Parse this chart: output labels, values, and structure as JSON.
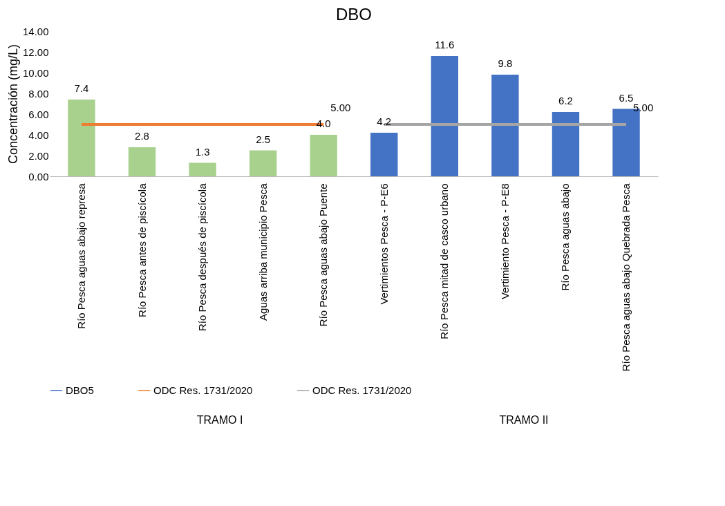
{
  "chart_data": {
    "type": "bar",
    "title": "DBO",
    "ylabel": "Concentración (mg/L)",
    "categories": [
      "Río Pesca aguas abajo represa",
      "Río Pesca antes de piscícola",
      "Río Pesca después de piscícola",
      "Aguas arriba municipio Pesca",
      "Río Pesca aguas abajo Puente",
      "Vertimientos Pesca - P-E6",
      "Río Pesca mitad de casco urbano",
      "Vertimiento Pesca - P-E8",
      "Río Pesca aguas abajo",
      "Río Pesca aguas abajo Quebrada Pesca"
    ],
    "series": [
      {
        "name": "DBO5",
        "color": "#4472c4",
        "colors": [
          "#a9d18e",
          "#a9d18e",
          "#a9d18e",
          "#a9d18e",
          "#a9d18e",
          "#4472c4",
          "#4472c4",
          "#4472c4",
          "#4472c4",
          "#4472c4"
        ],
        "values": [
          7.4,
          2.8,
          1.3,
          2.5,
          4.0,
          4.2,
          11.6,
          9.8,
          6.2,
          6.5
        ],
        "value_labels": [
          "7.4",
          "2.8",
          "1.3",
          "2.5",
          "4.0",
          "4.2",
          "11.6",
          "9.8",
          "6.2",
          "6.5"
        ]
      },
      {
        "name": "ODC Res. 1731/2020",
        "type": "line",
        "color": "#ed7d31",
        "values": [
          5,
          5,
          5,
          5,
          5,
          null,
          null,
          null,
          null,
          null
        ],
        "value_labels": [
          null,
          null,
          null,
          null,
          "5.00",
          null,
          null,
          null,
          null,
          null
        ]
      },
      {
        "name": "ODC Res. 1731/2020",
        "type": "line",
        "color": "#a5a5a5",
        "values": [
          null,
          null,
          null,
          null,
          null,
          5,
          5,
          5,
          5,
          5
        ],
        "value_labels": [
          null,
          null,
          null,
          null,
          null,
          null,
          null,
          null,
          null,
          "5.00"
        ]
      }
    ],
    "ylim": [
      0,
      14
    ],
    "yticks": [
      {
        "value": 0,
        "label": "0.00"
      },
      {
        "value": 2,
        "label": "2.00"
      },
      {
        "value": 4,
        "label": "4.00"
      },
      {
        "value": 6,
        "label": "6.00"
      },
      {
        "value": 8,
        "label": "8.00"
      },
      {
        "value": 10,
        "label": "10.00"
      },
      {
        "value": 12,
        "label": "12.00"
      },
      {
        "value": 14,
        "label": "14.00"
      }
    ],
    "annotations": [
      "TRAMO I",
      "TRAMO II"
    ],
    "legend": "bottom",
    "grid": false
  }
}
